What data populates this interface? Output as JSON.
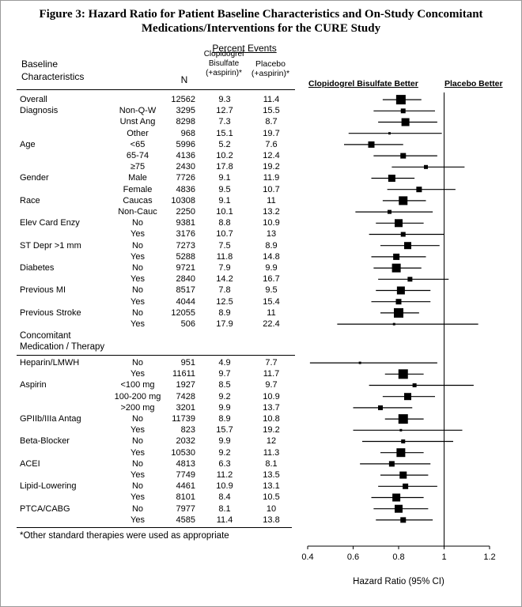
{
  "title": {
    "line1": "Figure 3: Hazard Ratio for Patient Baseline Characteristics and On-Study Concomitant",
    "line2": "Medications/Interventions for the CURE Study"
  },
  "table": {
    "percent_events_header": "Percent Events",
    "col_baseline": [
      "Baseline",
      "Characteristics"
    ],
    "col_n": "N",
    "col_clopidogrel": [
      "Clopidogrel",
      "Bisulfate",
      "(+aspirin)*"
    ],
    "col_placebo": [
      "Placebo",
      "(+aspirin)*"
    ],
    "section2": [
      "Concomitant",
      "Medication / Therapy"
    ],
    "footnote": "*Other standard therapies were used as appropriate"
  },
  "chart_data": {
    "type": "forest",
    "left_region_label": "Clopidogrel Bisulfate Better",
    "right_region_label": "Placebo Better",
    "x_axis": {
      "label": "Hazard Ratio (95% CI)",
      "ticks": [
        "0.4",
        "0.6",
        "0.8",
        "1",
        "1.2"
      ],
      "min": 0.4,
      "max": 1.2,
      "reference_line": 1
    },
    "sections": [
      {
        "name": "Baseline Characteristics",
        "rows": [
          {
            "category": "Overall",
            "subgroup": "",
            "n": 12562,
            "clopidogrel_pct": 9.3,
            "placebo_pct": 11.4,
            "hr": 0.81,
            "ci_low": 0.73,
            "ci_high": 0.9
          },
          {
            "category": "Diagnosis",
            "subgroup": "Non-Q-W",
            "n": 3295,
            "clopidogrel_pct": 12.7,
            "placebo_pct": 15.5,
            "hr": 0.82,
            "ci_low": 0.69,
            "ci_high": 0.96
          },
          {
            "category": "",
            "subgroup": "Unst Ang",
            "n": 8298,
            "clopidogrel_pct": 7.3,
            "placebo_pct": 8.7,
            "hr": 0.83,
            "ci_low": 0.71,
            "ci_high": 0.97
          },
          {
            "category": "",
            "subgroup": "Other",
            "n": 968,
            "clopidogrel_pct": 15.1,
            "placebo_pct": 19.7,
            "hr": 0.76,
            "ci_low": 0.58,
            "ci_high": 0.99
          },
          {
            "category": "Age",
            "subgroup": "<65",
            "n": 5996,
            "clopidogrel_pct": 5.2,
            "placebo_pct": 7.6,
            "hr": 0.68,
            "ci_low": 0.56,
            "ci_high": 0.82
          },
          {
            "category": "",
            "subgroup": "65-74",
            "n": 4136,
            "clopidogrel_pct": 10.2,
            "placebo_pct": 12.4,
            "hr": 0.82,
            "ci_low": 0.69,
            "ci_high": 0.97
          },
          {
            "category": "",
            "subgroup": "≥75",
            "n": 2430,
            "clopidogrel_pct": 17.8,
            "placebo_pct": 19.2,
            "hr": 0.92,
            "ci_low": 0.77,
            "ci_high": 1.09
          },
          {
            "category": "Gender",
            "subgroup": "Male",
            "n": 7726,
            "clopidogrel_pct": 9.1,
            "placebo_pct": 11.9,
            "hr": 0.77,
            "ci_low": 0.68,
            "ci_high": 0.87
          },
          {
            "category": "",
            "subgroup": "Female",
            "n": 4836,
            "clopidogrel_pct": 9.5,
            "placebo_pct": 10.7,
            "hr": 0.89,
            "ci_low": 0.75,
            "ci_high": 1.05
          },
          {
            "category": "Race",
            "subgroup": "Caucas",
            "n": 10308,
            "clopidogrel_pct": 9.1,
            "placebo_pct": 11,
            "hr": 0.82,
            "ci_low": 0.73,
            "ci_high": 0.92
          },
          {
            "category": "",
            "subgroup": "Non-Cauc",
            "n": 2250,
            "clopidogrel_pct": 10.1,
            "placebo_pct": 13.2,
            "hr": 0.76,
            "ci_low": 0.61,
            "ci_high": 0.95
          },
          {
            "category": "Elev Card Enzy",
            "subgroup": "No",
            "n": 9381,
            "clopidogrel_pct": 8.8,
            "placebo_pct": 10.9,
            "hr": 0.8,
            "ci_low": 0.7,
            "ci_high": 0.91
          },
          {
            "category": "",
            "subgroup": "Yes",
            "n": 3176,
            "clopidogrel_pct": 10.7,
            "placebo_pct": 13,
            "hr": 0.82,
            "ci_low": 0.67,
            "ci_high": 1.0
          },
          {
            "category": "ST Depr >1 mm",
            "subgroup": "No",
            "n": 7273,
            "clopidogrel_pct": 7.5,
            "placebo_pct": 8.9,
            "hr": 0.84,
            "ci_low": 0.72,
            "ci_high": 0.98
          },
          {
            "category": "",
            "subgroup": "Yes",
            "n": 5288,
            "clopidogrel_pct": 11.8,
            "placebo_pct": 14.8,
            "hr": 0.79,
            "ci_low": 0.68,
            "ci_high": 0.92
          },
          {
            "category": "Diabetes",
            "subgroup": "No",
            "n": 9721,
            "clopidogrel_pct": 7.9,
            "placebo_pct": 9.9,
            "hr": 0.79,
            "ci_low": 0.69,
            "ci_high": 0.9
          },
          {
            "category": "",
            "subgroup": "Yes",
            "n": 2840,
            "clopidogrel_pct": 14.2,
            "placebo_pct": 16.7,
            "hr": 0.85,
            "ci_low": 0.71,
            "ci_high": 1.02
          },
          {
            "category": "Previous MI",
            "subgroup": "No",
            "n": 8517,
            "clopidogrel_pct": 7.8,
            "placebo_pct": 9.5,
            "hr": 0.81,
            "ci_low": 0.7,
            "ci_high": 0.94
          },
          {
            "category": "",
            "subgroup": "Yes",
            "n": 4044,
            "clopidogrel_pct": 12.5,
            "placebo_pct": 15.4,
            "hr": 0.8,
            "ci_low": 0.68,
            "ci_high": 0.94
          },
          {
            "category": "Previous Stroke",
            "subgroup": "No",
            "n": 12055,
            "clopidogrel_pct": 8.9,
            "placebo_pct": 11,
            "hr": 0.8,
            "ci_low": 0.72,
            "ci_high": 0.89
          },
          {
            "category": "",
            "subgroup": "Yes",
            "n": 506,
            "clopidogrel_pct": 17.9,
            "placebo_pct": 22.4,
            "hr": 0.78,
            "ci_low": 0.53,
            "ci_high": 1.15
          }
        ]
      },
      {
        "name": "Concomitant Medication / Therapy",
        "rows": [
          {
            "category": "Heparin/LMWH",
            "subgroup": "No",
            "n": 951,
            "clopidogrel_pct": 4.9,
            "placebo_pct": 7.7,
            "hr": 0.63,
            "ci_low": 0.41,
            "ci_high": 0.97
          },
          {
            "category": "",
            "subgroup": "Yes",
            "n": 11611,
            "clopidogrel_pct": 9.7,
            "placebo_pct": 11.7,
            "hr": 0.82,
            "ci_low": 0.74,
            "ci_high": 0.91
          },
          {
            "category": "Aspirin",
            "subgroup": "<100 mg",
            "n": 1927,
            "clopidogrel_pct": 8.5,
            "placebo_pct": 9.7,
            "hr": 0.87,
            "ci_low": 0.67,
            "ci_high": 1.13
          },
          {
            "category": "",
            "subgroup": "100-200 mg",
            "n": 7428,
            "clopidogrel_pct": 9.2,
            "placebo_pct": 10.9,
            "hr": 0.84,
            "ci_low": 0.73,
            "ci_high": 0.96
          },
          {
            "category": "",
            "subgroup": ">200 mg",
            "n": 3201,
            "clopidogrel_pct": 9.9,
            "placebo_pct": 13.7,
            "hr": 0.72,
            "ci_low": 0.6,
            "ci_high": 0.86
          },
          {
            "category": "GPIIb/IIIa Antag",
            "subgroup": "No",
            "n": 11739,
            "clopidogrel_pct": 8.9,
            "placebo_pct": 10.8,
            "hr": 0.82,
            "ci_low": 0.74,
            "ci_high": 0.91
          },
          {
            "category": "",
            "subgroup": "Yes",
            "n": 823,
            "clopidogrel_pct": 15.7,
            "placebo_pct": 19.2,
            "hr": 0.81,
            "ci_low": 0.6,
            "ci_high": 1.08
          },
          {
            "category": "Beta-Blocker",
            "subgroup": "No",
            "n": 2032,
            "clopidogrel_pct": 9.9,
            "placebo_pct": 12,
            "hr": 0.82,
            "ci_low": 0.64,
            "ci_high": 1.04
          },
          {
            "category": "",
            "subgroup": "Yes",
            "n": 10530,
            "clopidogrel_pct": 9.2,
            "placebo_pct": 11.3,
            "hr": 0.81,
            "ci_low": 0.72,
            "ci_high": 0.91
          },
          {
            "category": "ACEI",
            "subgroup": "No",
            "n": 4813,
            "clopidogrel_pct": 6.3,
            "placebo_pct": 8.1,
            "hr": 0.77,
            "ci_low": 0.63,
            "ci_high": 0.94
          },
          {
            "category": "",
            "subgroup": "Yes",
            "n": 7749,
            "clopidogrel_pct": 11.2,
            "placebo_pct": 13.5,
            "hr": 0.82,
            "ci_low": 0.72,
            "ci_high": 0.93
          },
          {
            "category": "Lipid-Lowering",
            "subgroup": "No",
            "n": 4461,
            "clopidogrel_pct": 10.9,
            "placebo_pct": 13.1,
            "hr": 0.83,
            "ci_low": 0.71,
            "ci_high": 0.97
          },
          {
            "category": "",
            "subgroup": "Yes",
            "n": 8101,
            "clopidogrel_pct": 8.4,
            "placebo_pct": 10.5,
            "hr": 0.79,
            "ci_low": 0.68,
            "ci_high": 0.91
          },
          {
            "category": "PTCA/CABG",
            "subgroup": "No",
            "n": 7977,
            "clopidogrel_pct": 8.1,
            "placebo_pct": 10,
            "hr": 0.8,
            "ci_low": 0.69,
            "ci_high": 0.93
          },
          {
            "category": "",
            "subgroup": "Yes",
            "n": 4585,
            "clopidogrel_pct": 11.4,
            "placebo_pct": 13.8,
            "hr": 0.82,
            "ci_low": 0.7,
            "ci_high": 0.95
          }
        ]
      }
    ]
  }
}
